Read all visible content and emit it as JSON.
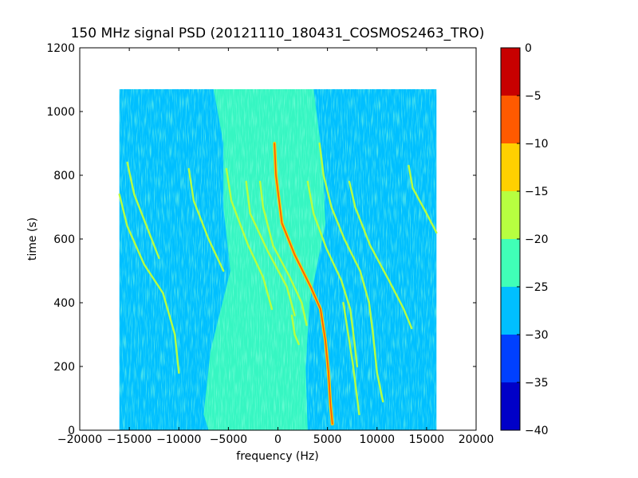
{
  "chart_data": {
    "type": "heatmap",
    "title": "150 MHz signal PSD (20121110_180431_COSMOS2463_TRO)",
    "xlabel": "frequency (Hz)",
    "ylabel": "time (s)",
    "xlim": [
      -20000,
      20000
    ],
    "ylim": [
      0,
      1200
    ],
    "x_ticks": [
      -20000,
      -15000,
      -10000,
      -5000,
      0,
      5000,
      10000,
      15000,
      20000
    ],
    "y_ticks": [
      0,
      200,
      400,
      600,
      800,
      1000,
      1200
    ],
    "data_extent": {
      "x": [
        -16000,
        16000
      ],
      "y": [
        0,
        1070
      ]
    },
    "background_level": [
      -30,
      -25
    ],
    "colorbar": {
      "levels": [
        -40,
        -35,
        -30,
        -25,
        -20,
        -15,
        -10,
        -5,
        0
      ],
      "ticks": [
        0,
        -5,
        -10,
        -15,
        -20,
        -25,
        -30,
        -35,
        -40
      ],
      "colors": [
        "#0000c8",
        "#0040ff",
        "#00bfff",
        "#40ffb7",
        "#b7ff40",
        "#ffd000",
        "#ff5a00",
        "#c80000"
      ]
    },
    "series": [
      {
        "level": -10,
        "points": [
          [
            -350,
            900
          ],
          [
            -200,
            800
          ],
          [
            400,
            650
          ],
          [
            1700,
            550
          ],
          [
            3300,
            450
          ],
          [
            4300,
            380
          ],
          [
            4800,
            280
          ],
          [
            5100,
            180
          ],
          [
            5300,
            80
          ],
          [
            5500,
            20
          ]
        ]
      },
      {
        "level": -20,
        "points": [
          [
            -1800,
            780
          ],
          [
            -1500,
            700
          ],
          [
            -500,
            580
          ],
          [
            1200,
            480
          ],
          [
            2400,
            400
          ],
          [
            2900,
            330
          ]
        ]
      },
      {
        "level": -20,
        "points": [
          [
            -3200,
            780
          ],
          [
            -2800,
            680
          ],
          [
            -1000,
            560
          ],
          [
            900,
            450
          ],
          [
            1700,
            360
          ]
        ]
      },
      {
        "level": -20,
        "points": [
          [
            -5200,
            820
          ],
          [
            -4700,
            720
          ],
          [
            -3000,
            580
          ],
          [
            -1500,
            480
          ],
          [
            -600,
            380
          ]
        ]
      },
      {
        "level": -20,
        "points": [
          [
            -9000,
            820
          ],
          [
            -8500,
            720
          ],
          [
            -7000,
            600
          ],
          [
            -5500,
            500
          ]
        ]
      },
      {
        "level": -20,
        "points": [
          [
            -16000,
            740
          ],
          [
            -15200,
            640
          ],
          [
            -13500,
            520
          ],
          [
            -11600,
            430
          ],
          [
            -10400,
            300
          ],
          [
            -10000,
            180
          ]
        ]
      },
      {
        "level": -20,
        "points": [
          [
            -15200,
            840
          ],
          [
            -14500,
            740
          ],
          [
            -13000,
            620
          ],
          [
            -12000,
            540
          ]
        ]
      },
      {
        "level": -20,
        "points": [
          [
            1400,
            360
          ],
          [
            1700,
            300
          ],
          [
            2100,
            270
          ]
        ]
      },
      {
        "level": -20,
        "points": [
          [
            3000,
            780
          ],
          [
            3600,
            680
          ],
          [
            4900,
            570
          ],
          [
            6400,
            470
          ],
          [
            7300,
            380
          ],
          [
            7700,
            280
          ],
          [
            8000,
            200
          ]
        ]
      },
      {
        "level": -20,
        "points": [
          [
            4200,
            900
          ],
          [
            4600,
            800
          ],
          [
            5400,
            700
          ],
          [
            6700,
            600
          ],
          [
            8300,
            500
          ],
          [
            9200,
            400
          ],
          [
            9600,
            300
          ],
          [
            10000,
            180
          ],
          [
            10600,
            90
          ]
        ]
      },
      {
        "level": -20,
        "points": [
          [
            7200,
            780
          ],
          [
            7800,
            700
          ],
          [
            9300,
            580
          ],
          [
            11200,
            470
          ],
          [
            12700,
            380
          ],
          [
            13500,
            320
          ]
        ]
      },
      {
        "level": -20,
        "points": [
          [
            13200,
            830
          ],
          [
            13600,
            760
          ],
          [
            15000,
            680
          ],
          [
            16000,
            620
          ]
        ]
      },
      {
        "level": -20,
        "points": [
          [
            6600,
            400
          ],
          [
            7100,
            300
          ],
          [
            7600,
            200
          ],
          [
            8200,
            50
          ]
        ]
      }
    ]
  }
}
